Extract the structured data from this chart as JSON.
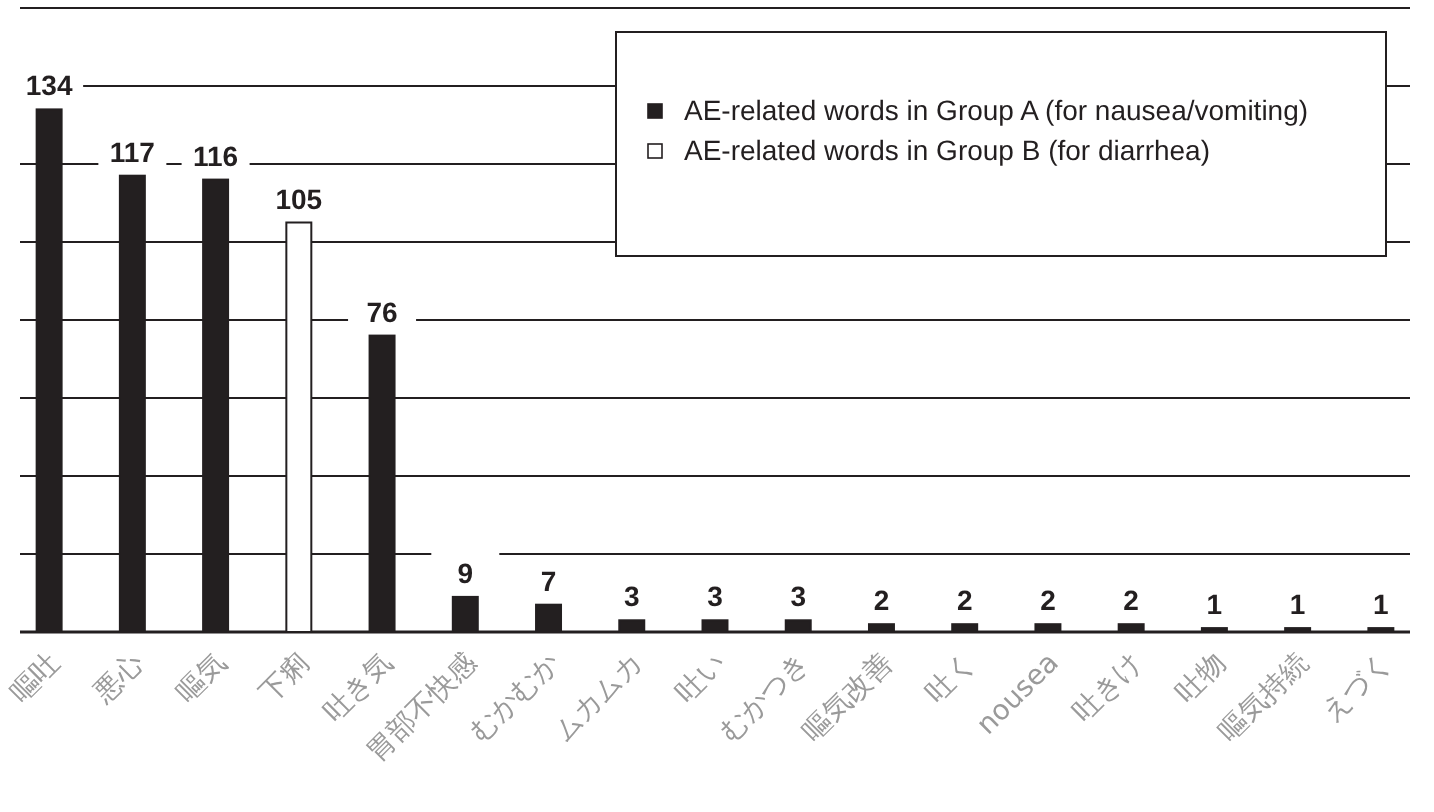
{
  "chart_data": {
    "type": "bar",
    "categories": [
      "嘔吐",
      "悪心",
      "嘔気",
      "下痢",
      "吐き気",
      "胃部不快感",
      "むかむか",
      "ムカムカ",
      "吐い",
      "むかつき",
      "嘔気改善",
      "吐く",
      "nousea",
      "吐きけ",
      "吐物",
      "嘔気持続",
      "えづく"
    ],
    "series": [
      {
        "name": "AE-related words in Group A (for nausea/vomiting)",
        "color": "#231f20",
        "values": [
          134,
          117,
          116,
          null,
          76,
          9,
          7,
          3,
          3,
          3,
          2,
          2,
          2,
          2,
          1,
          1,
          1
        ]
      },
      {
        "name": "AE-related words in Group B (for diarrhea)",
        "color": "#ffffff",
        "values": [
          null,
          null,
          null,
          105,
          null,
          null,
          null,
          null,
          null,
          null,
          null,
          null,
          null,
          null,
          null,
          null,
          null
        ]
      }
    ],
    "ylim": [
      0,
      160
    ],
    "yticks": [
      {
        "value": 0,
        "label": null
      },
      {
        "value": 20,
        "label": null
      },
      {
        "value": 40,
        "label": null
      },
      {
        "value": 60,
        "label": null
      },
      {
        "value": 80,
        "label": null
      },
      {
        "value": 100,
        "label": null
      },
      {
        "value": 120,
        "label": null
      },
      {
        "value": 140,
        "label": null
      },
      {
        "value": 160,
        "label": null
      }
    ],
    "tick_labels": "x",
    "grid": "y",
    "legend": "top right",
    "data_labels": true
  }
}
